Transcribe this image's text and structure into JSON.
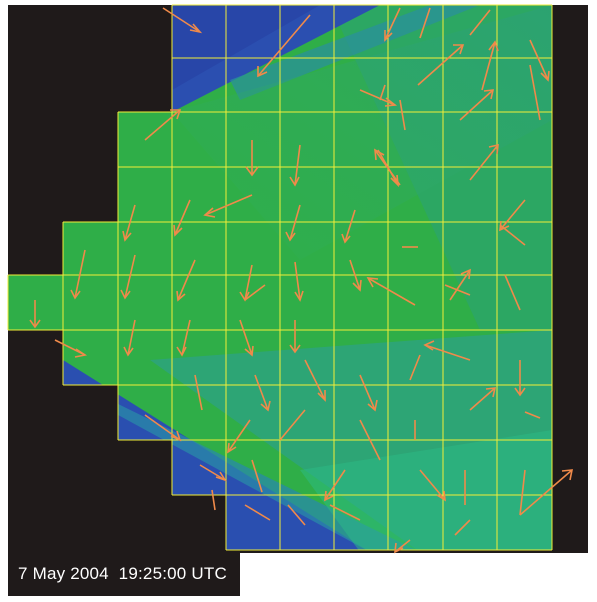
{
  "timestamp": "7 May 2004  19:25:00 UTC",
  "colors": {
    "background": "#1f1a1a",
    "field_green": "#2fb04a",
    "field_blue": "#2a4fb0",
    "grid": "#f2ee38",
    "arrow": "#f08a4a"
  },
  "icons": [
    "flow-vector-arrow"
  ]
}
